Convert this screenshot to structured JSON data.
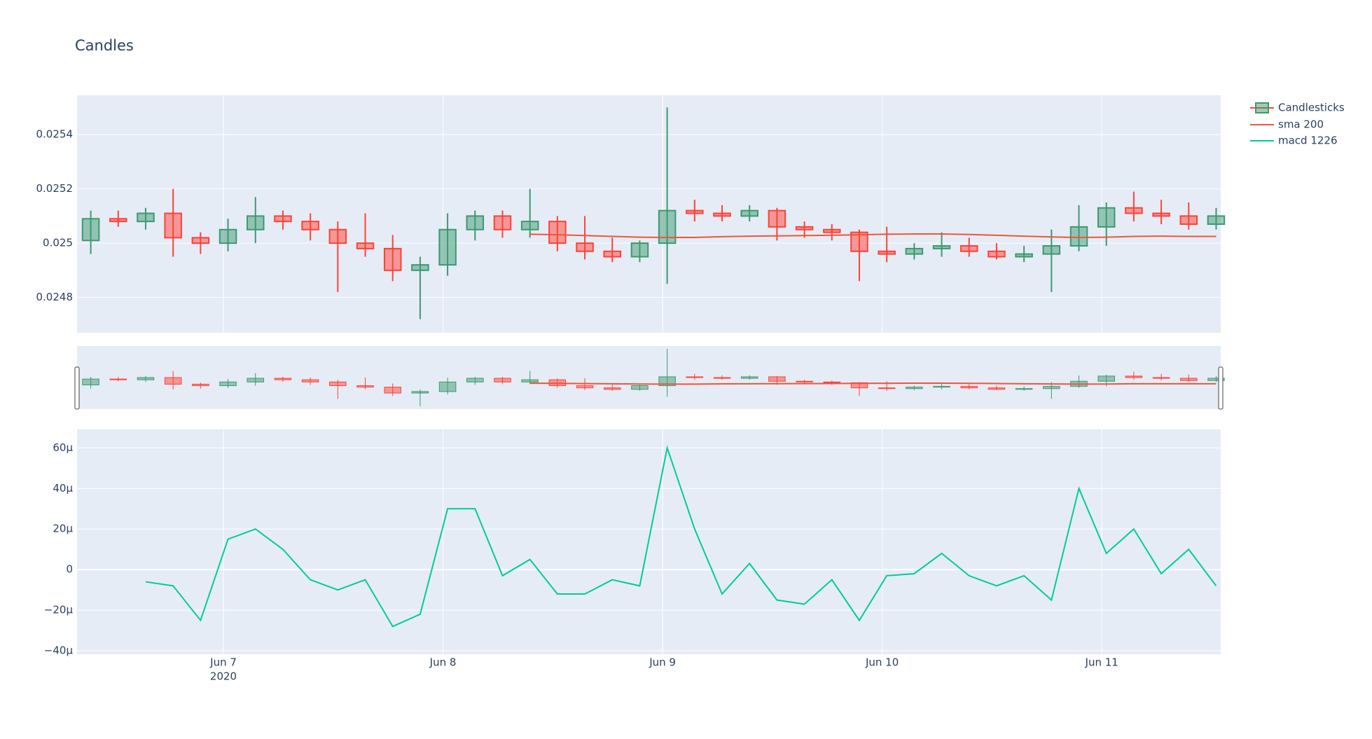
{
  "chart_data": {
    "type": "candlestick",
    "title": "Candles",
    "name": "Candlesticks",
    "increasing_color": "#3D9970",
    "decreasing_color": "#FF4136",
    "x": [
      "2020-06-06 09:30",
      "2020-06-06 12:30",
      "2020-06-06 15:30",
      "2020-06-06 18:30",
      "2020-06-06 21:30",
      "2020-06-07 00:30",
      "2020-06-07 03:30",
      "2020-06-07 06:30",
      "2020-06-07 09:30",
      "2020-06-07 12:30",
      "2020-06-07 15:30",
      "2020-06-07 18:30",
      "2020-06-07 21:30",
      "2020-06-08 00:30",
      "2020-06-08 03:30",
      "2020-06-08 06:30",
      "2020-06-08 09:30",
      "2020-06-08 12:30",
      "2020-06-08 15:30",
      "2020-06-08 18:30",
      "2020-06-08 21:30",
      "2020-06-09 00:30",
      "2020-06-09 03:30",
      "2020-06-09 06:30",
      "2020-06-09 09:30",
      "2020-06-09 12:30",
      "2020-06-09 15:30",
      "2020-06-09 18:30",
      "2020-06-09 21:30",
      "2020-06-10 00:30",
      "2020-06-10 03:30",
      "2020-06-10 06:30",
      "2020-06-10 09:30",
      "2020-06-10 12:30",
      "2020-06-10 15:30",
      "2020-06-10 18:30",
      "2020-06-10 21:30",
      "2020-06-11 00:30",
      "2020-06-11 03:30",
      "2020-06-11 06:30",
      "2020-06-11 09:30",
      "2020-06-11 12:30"
    ],
    "open": [
      0.02501,
      0.02509,
      0.02508,
      0.02511,
      0.02502,
      0.025,
      0.02505,
      0.0251,
      0.02508,
      0.02505,
      0.025,
      0.02498,
      0.0249,
      0.02492,
      0.02505,
      0.0251,
      0.02505,
      0.02508,
      0.025,
      0.02497,
      0.02495,
      0.025,
      0.02512,
      0.02511,
      0.0251,
      0.02512,
      0.02506,
      0.02505,
      0.02504,
      0.02497,
      0.02496,
      0.02498,
      0.02499,
      0.02497,
      0.02495,
      0.02496,
      0.02499,
      0.02506,
      0.02513,
      0.02511,
      0.0251,
      0.02507
    ],
    "high": [
      0.02512,
      0.02512,
      0.02513,
      0.0252,
      0.02504,
      0.02509,
      0.02517,
      0.02512,
      0.02511,
      0.02508,
      0.02511,
      0.02503,
      0.02495,
      0.02511,
      0.02512,
      0.02512,
      0.0252,
      0.0251,
      0.0251,
      0.02502,
      0.02501,
      0.0255,
      0.02516,
      0.02514,
      0.02514,
      0.02513,
      0.02508,
      0.02507,
      0.02505,
      0.02506,
      0.025,
      0.02504,
      0.02502,
      0.025,
      0.02499,
      0.02505,
      0.02514,
      0.02515,
      0.02519,
      0.02516,
      0.02515,
      0.02513
    ],
    "low": [
      0.02496,
      0.02506,
      0.02505,
      0.02495,
      0.02496,
      0.02497,
      0.025,
      0.02505,
      0.02501,
      0.02482,
      0.02495,
      0.02486,
      0.02472,
      0.02488,
      0.02501,
      0.02502,
      0.02502,
      0.02497,
      0.02494,
      0.02493,
      0.02493,
      0.02485,
      0.02508,
      0.02508,
      0.02508,
      0.02501,
      0.02502,
      0.02501,
      0.02486,
      0.02493,
      0.02494,
      0.02495,
      0.02495,
      0.02494,
      0.02493,
      0.02482,
      0.02497,
      0.02499,
      0.02508,
      0.02507,
      0.02505,
      0.02505
    ],
    "close": [
      0.02509,
      0.02508,
      0.02511,
      0.02502,
      0.025,
      0.02505,
      0.0251,
      0.02508,
      0.02505,
      0.025,
      0.02498,
      0.0249,
      0.02492,
      0.02505,
      0.0251,
      0.02505,
      0.02508,
      0.025,
      0.02497,
      0.02495,
      0.025,
      0.02512,
      0.02511,
      0.0251,
      0.02512,
      0.02506,
      0.02505,
      0.02504,
      0.02497,
      0.02496,
      0.02498,
      0.02499,
      0.02497,
      0.02495,
      0.02496,
      0.02499,
      0.02506,
      0.02513,
      0.02511,
      0.0251,
      0.02507,
      0.0251
    ],
    "series": [
      {
        "name": "sma 200",
        "color": "#EF553B",
        "values": [
          null,
          null,
          null,
          null,
          null,
          null,
          null,
          null,
          null,
          null,
          null,
          null,
          null,
          null,
          null,
          null,
          0.025033,
          0.025031,
          0.025028,
          0.025025,
          0.025022,
          0.025021,
          0.025021,
          0.025024,
          0.025026,
          0.025027,
          0.025028,
          0.025029,
          0.025031,
          0.025033,
          0.025034,
          0.025034,
          0.025032,
          0.025029,
          0.025026,
          0.025023,
          0.025021,
          0.025022,
          0.025025,
          0.025026,
          0.025025,
          0.025025
        ]
      }
    ],
    "xlim": [
      "2020-06-06 08:00",
      "2020-06-11 13:00"
    ],
    "xticks": [
      {
        "value": "2020-06-07 00:00",
        "label": "Jun 7"
      },
      {
        "value": "2020-06-08 00:00",
        "label": "Jun 8"
      },
      {
        "value": "2020-06-09 00:00",
        "label": "Jun 9"
      },
      {
        "value": "2020-06-10 00:00",
        "label": "Jun 10"
      },
      {
        "value": "2020-06-11 00:00",
        "label": "Jun 11"
      }
    ],
    "xtick_year": "2020",
    "ylim": [
      0.02467,
      0.025545
    ],
    "yticks": [
      0.0248,
      0.025,
      0.0252,
      0.0254
    ],
    "grid": true,
    "rangeslider": true,
    "lower": {
      "type": "line",
      "series": [
        {
          "name": "macd 1226",
          "color": "#00CC96",
          "values": [
            null,
            null,
            -6e-06,
            -8e-06,
            -2.5e-05,
            1.5e-05,
            2e-05,
            1e-05,
            -5e-06,
            -1e-05,
            -5e-06,
            -2.8e-05,
            -2.2e-05,
            3e-05,
            3e-05,
            -3e-06,
            5e-06,
            -1.2e-05,
            -1.2e-05,
            -5e-06,
            -8e-06,
            6e-05,
            2e-05,
            -1.2e-05,
            3e-06,
            -1.5e-05,
            -1.7e-05,
            -5e-06,
            -2.5e-05,
            -3e-06,
            -2e-06,
            8e-06,
            -3e-06,
            -8e-06,
            -3e-06,
            -1.5e-05,
            4e-05,
            8e-06,
            2e-05,
            -2e-06,
            1e-05,
            -8e-06
          ]
        }
      ],
      "ylim": [
        -4.17e-05,
        6.91e-05
      ],
      "yticks": [
        {
          "value": -4e-05,
          "label": "−40μ"
        },
        {
          "value": -2e-05,
          "label": "−20μ"
        },
        0,
        {
          "value": 2e-05,
          "label": "20μ"
        },
        {
          "value": 4e-05,
          "label": "40μ"
        },
        {
          "value": 6e-05,
          "label": "60μ"
        }
      ]
    }
  }
}
